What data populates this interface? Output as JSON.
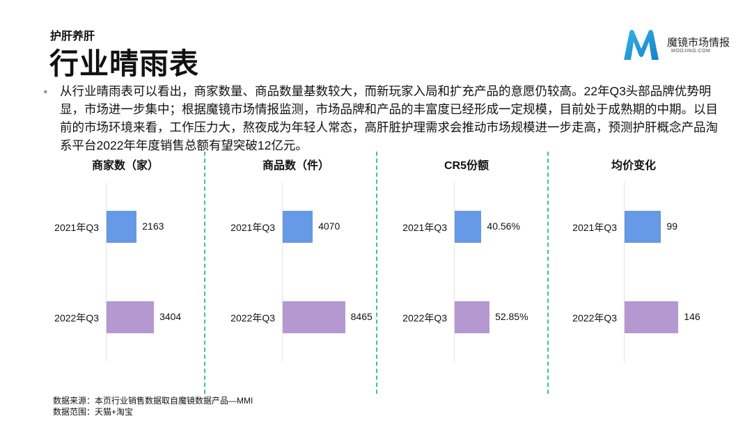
{
  "header": {
    "subtitle": "护肝养肝",
    "title": "行业晴雨表"
  },
  "logo": {
    "name": "魔镜市场情报",
    "domain": "MOOJING.COM"
  },
  "summary": "从行业晴雨表可以看出，商家数量、商品数量基数较大，而新玩家入局和扩充产品的意愿仍较高。22年Q3头部品牌优势明显，市场进一步集中；根据魔镜市场情报监测，市场品牌和产品的丰富度已经形成一定规模，目前处于成熟期的中期。以目前的市场环境来看，工作压力大，熬夜成为年轻人常态，高肝脏护理需求会推动市场规模进一步走高，预测护肝概念产品淘系平台2022年年度销售总额有望突破12亿元。",
  "colors": {
    "q3_2021": "#6699e6",
    "q3_2022": "#b698d1",
    "divider": "#3cc29a"
  },
  "chart_data": [
    {
      "type": "bar",
      "title": "商家数（家）",
      "categories": [
        "2021年Q3",
        "2022年Q3"
      ],
      "values": [
        2163,
        3404
      ],
      "value_labels": [
        "2163",
        "3404"
      ],
      "orientation": "horizontal",
      "xlim": [
        0,
        4500
      ]
    },
    {
      "type": "bar",
      "title": "商品数（件）",
      "categories": [
        "2021年Q3",
        "2022年Q3"
      ],
      "values": [
        4070,
        8465
      ],
      "value_labels": [
        "4070",
        "8465"
      ],
      "orientation": "horizontal",
      "xlim": [
        0,
        8500
      ]
    },
    {
      "type": "bar",
      "title": "CR5份额",
      "categories": [
        "2021年Q3",
        "2022年Q3"
      ],
      "values": [
        40.56,
        52.85
      ],
      "value_labels": [
        "40.56%",
        "52.85%"
      ],
      "orientation": "horizontal",
      "xlim": [
        0,
        95
      ]
    },
    {
      "type": "bar",
      "title": "均价变化",
      "categories": [
        "2021年Q3",
        "2022年Q3"
      ],
      "values": [
        99,
        146
      ],
      "value_labels": [
        "99",
        "146"
      ],
      "orientation": "horizontal",
      "xlim": [
        0,
        170
      ]
    }
  ],
  "footer": {
    "source": "数据来源：本页行业销售数据取自魔镜数据产品—MMI",
    "scope": "数据范围：天猫+淘宝"
  }
}
